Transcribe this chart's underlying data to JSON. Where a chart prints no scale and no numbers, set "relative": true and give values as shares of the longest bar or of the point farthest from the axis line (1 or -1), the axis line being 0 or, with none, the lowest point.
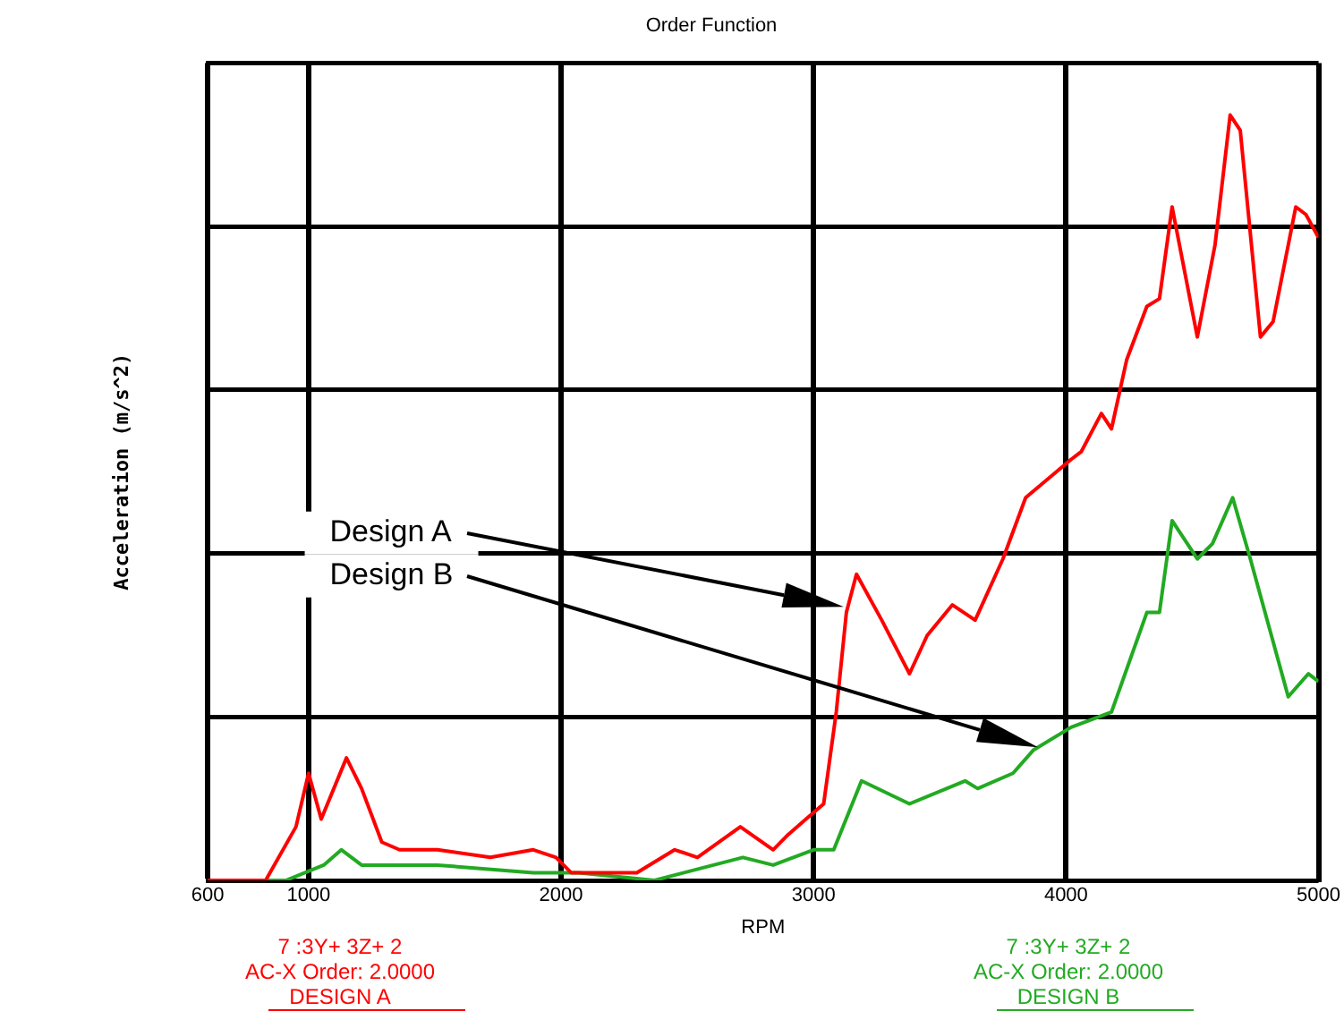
{
  "chart_data": {
    "type": "line",
    "title": "Order Function",
    "xlabel": "RPM",
    "ylabel": "Acceleration (m/s^2)",
    "relative": true,
    "xlim": [
      600,
      5000
    ],
    "xticks": [
      {
        "value": 600,
        "label": "600"
      },
      1000,
      2000,
      3000,
      4000,
      5000
    ],
    "grid": true,
    "legend": "bottom",
    "marker": "none",
    "line_style": "solid",
    "series": [
      {
        "name": "7 :3Y+ 3Z+ 2\nAC-X Order: 2.0000\nDESIGN A",
        "color": "#ff0000",
        "x": [
          600,
          830,
          950,
          1000,
          1050,
          1150,
          1210,
          1290,
          1360,
          1510,
          1720,
          1890,
          1980,
          2040,
          2190,
          2300,
          2450,
          2540,
          2710,
          2840,
          2900,
          2970,
          3040,
          3090,
          3130,
          3170,
          3270,
          3380,
          3450,
          3550,
          3640,
          3750,
          3840,
          4020,
          4060,
          4140,
          4180,
          4240,
          4320,
          4370,
          4420,
          4520,
          4590,
          4650,
          4690,
          4770,
          4820,
          4910,
          4950,
          5000
        ],
        "values": [
          0,
          0,
          0.07,
          0.14,
          0.08,
          0.16,
          0.12,
          0.05,
          0.04,
          0.04,
          0.03,
          0.04,
          0.03,
          0.01,
          0.01,
          0.01,
          0.04,
          0.03,
          0.07,
          0.04,
          0.06,
          0.08,
          0.1,
          0.22,
          0.35,
          0.4,
          0.34,
          0.27,
          0.32,
          0.36,
          0.34,
          0.42,
          0.5,
          0.55,
          0.56,
          0.61,
          0.59,
          0.68,
          0.75,
          0.76,
          0.88,
          0.71,
          0.83,
          1.0,
          0.98,
          0.71,
          0.73,
          0.88,
          0.87,
          0.84
        ]
      },
      {
        "name": "7 :3Y+ 3Z+ 2\nAC-X Order: 2.0000\nDESIGN B",
        "color": "#22aa22",
        "x": [
          600,
          910,
          1060,
          1130,
          1210,
          1510,
          1890,
          2070,
          2370,
          2720,
          2840,
          3000,
          3080,
          3190,
          3380,
          3600,
          3650,
          3790,
          3870,
          4020,
          4180,
          4320,
          4370,
          4420,
          4520,
          4580,
          4660,
          4730,
          4880,
          4960,
          5000
        ],
        "values": [
          0,
          0,
          0.02,
          0.04,
          0.02,
          0.02,
          0.01,
          0.01,
          0,
          0.03,
          0.02,
          0.04,
          0.04,
          0.13,
          0.1,
          0.13,
          0.12,
          0.14,
          0.17,
          0.2,
          0.22,
          0.35,
          0.35,
          0.47,
          0.42,
          0.44,
          0.5,
          0.42,
          0.24,
          0.27,
          0.26
        ]
      }
    ],
    "annotations": [
      "Design A",
      "Design B"
    ]
  }
}
